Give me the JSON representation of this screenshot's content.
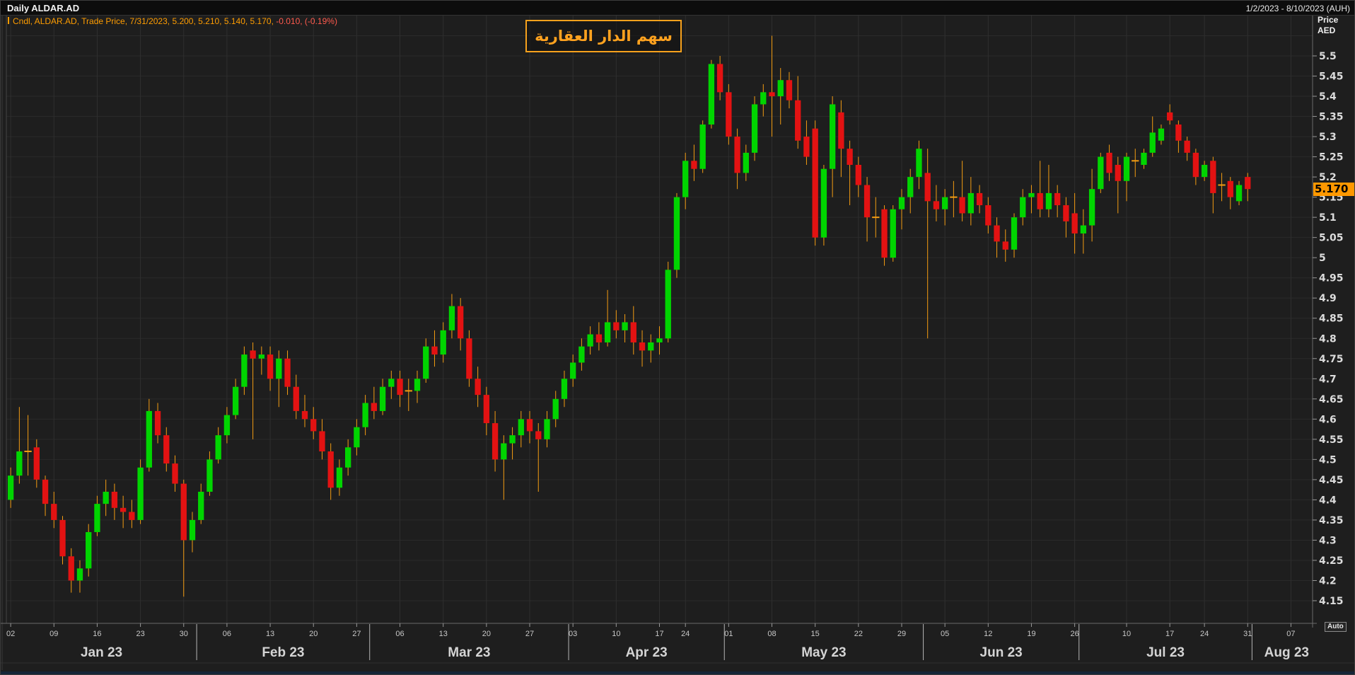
{
  "window": {
    "title": "Daily ALDAR.AD",
    "date_range": "1/2/2023 - 8/10/2023 (AUH)"
  },
  "legend": {
    "series_text": "Cndl, ALDAR.AD, Trade Price,  7/31/2023, 5.200, 5.210, 5.140, 5.170,",
    "change_text": " -0.010, (-0.19%)"
  },
  "annotation": {
    "text": "سهم الدار العقارية"
  },
  "axis": {
    "price_title": "Price",
    "currency": "AED",
    "auto_label": "Auto",
    "last_price_label": "5.170"
  },
  "colors": {
    "background": "#1e1e1e",
    "grid_h": "#2a2a2a",
    "grid_v": "#2f2f2f",
    "up": "#00d500",
    "down": "#e31212",
    "wick": "#f39c12",
    "doji": "#f39c12",
    "axis_line": "#6a6a6a",
    "axis_text": "#dcdcdc",
    "day_text": "#c8c8c8",
    "month_text": "#d4d4d4",
    "month_sep": "#b5b5b5",
    "accent_orange": "#ff9d00",
    "negative_red": "#ff5a4d",
    "price_label_bg": "#ff9800"
  },
  "chart_data": {
    "type": "candlestick",
    "symbol": "ALDAR.AD",
    "interval": "Daily",
    "title": "Daily ALDAR.AD",
    "ylabel": "Price AED",
    "y_axis": {
      "min": 4.15,
      "max": 5.5,
      "step": 0.05,
      "last_price": 5.17
    },
    "x_range": "1/2/2023 - 8/10/2023",
    "total_slots": 151,
    "x_ticks": [
      {
        "label": "02",
        "i": 0
      },
      {
        "label": "09",
        "i": 5
      },
      {
        "label": "16",
        "i": 10
      },
      {
        "label": "23",
        "i": 15
      },
      {
        "label": "30",
        "i": 20
      },
      {
        "label": "06",
        "i": 25
      },
      {
        "label": "13",
        "i": 30
      },
      {
        "label": "20",
        "i": 35
      },
      {
        "label": "27",
        "i": 40
      },
      {
        "label": "06",
        "i": 45
      },
      {
        "label": "13",
        "i": 50
      },
      {
        "label": "20",
        "i": 55
      },
      {
        "label": "27",
        "i": 60
      },
      {
        "label": "03",
        "i": 65
      },
      {
        "label": "10",
        "i": 70
      },
      {
        "label": "17",
        "i": 75
      },
      {
        "label": "24",
        "i": 78
      },
      {
        "label": "01",
        "i": 83
      },
      {
        "label": "08",
        "i": 88
      },
      {
        "label": "15",
        "i": 93
      },
      {
        "label": "22",
        "i": 98
      },
      {
        "label": "29",
        "i": 103
      },
      {
        "label": "05",
        "i": 108
      },
      {
        "label": "12",
        "i": 113
      },
      {
        "label": "19",
        "i": 118
      },
      {
        "label": "26",
        "i": 123
      },
      {
        "label": "10",
        "i": 129
      },
      {
        "label": "17",
        "i": 134
      },
      {
        "label": "24",
        "i": 138
      },
      {
        "label": "31",
        "i": 143
      },
      {
        "label": "07",
        "i": 148
      }
    ],
    "months": [
      {
        "label": "Jan 23",
        "start": 0,
        "end": 21
      },
      {
        "label": "Feb 23",
        "start": 22,
        "end": 41
      },
      {
        "label": "Mar 23",
        "start": 42,
        "end": 64
      },
      {
        "label": "Apr 23",
        "start": 65,
        "end": 82
      },
      {
        "label": "May 23",
        "start": 83,
        "end": 105
      },
      {
        "label": "Jun 23",
        "start": 106,
        "end": 123
      },
      {
        "label": "Jul 23",
        "start": 124,
        "end": 143
      },
      {
        "label": "Aug 23",
        "start": 144,
        "end": 151
      }
    ],
    "candles": [
      [
        "2023-01-02",
        4.4,
        4.48,
        4.38,
        4.46
      ],
      [
        "2023-01-03",
        4.46,
        4.63,
        4.44,
        4.52
      ],
      [
        "2023-01-04",
        4.52,
        4.61,
        4.46,
        4.52
      ],
      [
        "2023-01-05",
        4.53,
        4.55,
        4.43,
        4.45
      ],
      [
        "2023-01-06",
        4.45,
        4.46,
        4.36,
        4.39
      ],
      [
        "2023-01-09",
        4.39,
        4.42,
        4.33,
        4.35
      ],
      [
        "2023-01-10",
        4.35,
        4.36,
        4.24,
        4.26
      ],
      [
        "2023-01-11",
        4.26,
        4.28,
        4.17,
        4.2
      ],
      [
        "2023-01-12",
        4.2,
        4.25,
        4.17,
        4.23
      ],
      [
        "2023-01-13",
        4.23,
        4.34,
        4.21,
        4.32
      ],
      [
        "2023-01-16",
        4.32,
        4.41,
        4.31,
        4.39
      ],
      [
        "2023-01-17",
        4.39,
        4.45,
        4.36,
        4.42
      ],
      [
        "2023-01-18",
        4.42,
        4.44,
        4.35,
        4.38
      ],
      [
        "2023-01-19",
        4.38,
        4.41,
        4.33,
        4.37
      ],
      [
        "2023-01-20",
        4.37,
        4.4,
        4.33,
        4.35
      ],
      [
        "2023-01-23",
        4.35,
        4.5,
        4.34,
        4.48
      ],
      [
        "2023-01-24",
        4.48,
        4.65,
        4.47,
        4.62
      ],
      [
        "2023-01-25",
        4.62,
        4.64,
        4.54,
        4.56
      ],
      [
        "2023-01-26",
        4.56,
        4.58,
        4.47,
        4.49
      ],
      [
        "2023-01-27",
        4.49,
        4.51,
        4.42,
        4.44
      ],
      [
        "2023-01-30",
        4.44,
        4.45,
        4.16,
        4.3
      ],
      [
        "2023-01-31",
        4.3,
        4.37,
        4.27,
        4.35
      ],
      [
        "2023-02-01",
        4.35,
        4.44,
        4.34,
        4.42
      ],
      [
        "2023-02-02",
        4.42,
        4.52,
        4.41,
        4.5
      ],
      [
        "2023-02-03",
        4.5,
        4.58,
        4.49,
        4.56
      ],
      [
        "2023-02-06",
        4.56,
        4.63,
        4.54,
        4.61
      ],
      [
        "2023-02-07",
        4.61,
        4.7,
        4.6,
        4.68
      ],
      [
        "2023-02-08",
        4.68,
        4.78,
        4.66,
        4.76
      ],
      [
        "2023-02-09",
        4.77,
        4.79,
        4.55,
        4.75
      ],
      [
        "2023-02-10",
        4.75,
        4.78,
        4.71,
        4.76
      ],
      [
        "2023-02-13",
        4.76,
        4.78,
        4.67,
        4.7
      ],
      [
        "2023-02-14",
        4.7,
        4.77,
        4.63,
        4.75
      ],
      [
        "2023-02-15",
        4.75,
        4.77,
        4.66,
        4.68
      ],
      [
        "2023-02-16",
        4.68,
        4.71,
        4.6,
        4.62
      ],
      [
        "2023-02-17",
        4.62,
        4.66,
        4.58,
        4.6
      ],
      [
        "2023-02-20",
        4.6,
        4.63,
        4.55,
        4.57
      ],
      [
        "2023-02-21",
        4.57,
        4.6,
        4.5,
        4.52
      ],
      [
        "2023-02-22",
        4.52,
        4.54,
        4.4,
        4.43
      ],
      [
        "2023-02-23",
        4.43,
        4.5,
        4.41,
        4.48
      ],
      [
        "2023-02-24",
        4.48,
        4.55,
        4.46,
        4.53
      ],
      [
        "2023-02-27",
        4.53,
        4.6,
        4.51,
        4.58
      ],
      [
        "2023-02-28",
        4.58,
        4.66,
        4.56,
        4.64
      ],
      [
        "2023-03-01",
        4.64,
        4.68,
        4.6,
        4.62
      ],
      [
        "2023-03-02",
        4.62,
        4.7,
        4.61,
        4.68
      ],
      [
        "2023-03-03",
        4.68,
        4.72,
        4.65,
        4.7
      ],
      [
        "2023-03-06",
        4.7,
        4.72,
        4.63,
        4.66
      ],
      [
        "2023-03-07",
        4.67,
        4.7,
        4.62,
        4.67
      ],
      [
        "2023-03-08",
        4.67,
        4.72,
        4.64,
        4.7
      ],
      [
        "2023-03-09",
        4.7,
        4.8,
        4.69,
        4.78
      ],
      [
        "2023-03-10",
        4.78,
        4.82,
        4.73,
        4.76
      ],
      [
        "2023-03-13",
        4.76,
        4.84,
        4.74,
        4.82
      ],
      [
        "2023-03-14",
        4.82,
        4.91,
        4.8,
        4.88
      ],
      [
        "2023-03-15",
        4.88,
        4.9,
        4.77,
        4.8
      ],
      [
        "2023-03-16",
        4.8,
        4.82,
        4.68,
        4.7
      ],
      [
        "2023-03-17",
        4.7,
        4.73,
        4.63,
        4.66
      ],
      [
        "2023-03-20",
        4.66,
        4.68,
        4.56,
        4.59
      ],
      [
        "2023-03-21",
        4.59,
        4.62,
        4.47,
        4.5
      ],
      [
        "2023-03-22",
        4.5,
        4.56,
        4.4,
        4.54
      ],
      [
        "2023-03-23",
        4.54,
        4.58,
        4.5,
        4.56
      ],
      [
        "2023-03-24",
        4.56,
        4.62,
        4.53,
        4.6
      ],
      [
        "2023-03-27",
        4.6,
        4.62,
        4.54,
        4.57
      ],
      [
        "2023-03-28",
        4.57,
        4.59,
        4.42,
        4.55
      ],
      [
        "2023-03-29",
        4.55,
        4.62,
        4.53,
        4.6
      ],
      [
        "2023-03-30",
        4.6,
        4.67,
        4.58,
        4.65
      ],
      [
        "2023-03-31",
        4.65,
        4.72,
        4.63,
        4.7
      ],
      [
        "2023-04-03",
        4.7,
        4.76,
        4.68,
        4.74
      ],
      [
        "2023-04-04",
        4.74,
        4.8,
        4.72,
        4.78
      ],
      [
        "2023-04-05",
        4.78,
        4.83,
        4.76,
        4.81
      ],
      [
        "2023-04-06",
        4.81,
        4.84,
        4.77,
        4.79
      ],
      [
        "2023-04-07",
        4.79,
        4.92,
        4.78,
        4.84
      ],
      [
        "2023-04-10",
        4.84,
        4.87,
        4.8,
        4.82
      ],
      [
        "2023-04-11",
        4.82,
        4.86,
        4.79,
        4.84
      ],
      [
        "2023-04-12",
        4.84,
        4.88,
        4.76,
        4.79
      ],
      [
        "2023-04-13",
        4.79,
        4.82,
        4.73,
        4.77
      ],
      [
        "2023-04-14",
        4.77,
        4.81,
        4.74,
        4.79
      ],
      [
        "2023-04-17",
        4.79,
        4.83,
        4.76,
        4.8
      ],
      [
        "2023-04-18",
        4.8,
        4.99,
        4.79,
        4.97
      ],
      [
        "2023-04-19",
        4.97,
        5.16,
        4.95,
        5.15
      ],
      [
        "2023-04-24",
        5.15,
        5.26,
        5.12,
        5.24
      ],
      [
        "2023-04-25",
        5.24,
        5.28,
        5.19,
        5.22
      ],
      [
        "2023-04-26",
        5.22,
        5.34,
        5.21,
        5.33
      ],
      [
        "2023-04-27",
        5.33,
        5.49,
        5.32,
        5.48
      ],
      [
        "2023-04-28",
        5.48,
        5.5,
        5.39,
        5.41
      ],
      [
        "2023-05-01",
        5.41,
        5.43,
        5.28,
        5.3
      ],
      [
        "2023-05-02",
        5.3,
        5.32,
        5.17,
        5.21
      ],
      [
        "2023-05-03",
        5.21,
        5.28,
        5.19,
        5.26
      ],
      [
        "2023-05-04",
        5.26,
        5.4,
        5.24,
        5.38
      ],
      [
        "2023-05-05",
        5.38,
        5.43,
        5.35,
        5.41
      ],
      [
        "2023-05-08",
        5.41,
        5.55,
        5.3,
        5.4
      ],
      [
        "2023-05-09",
        5.4,
        5.47,
        5.33,
        5.44
      ],
      [
        "2023-05-10",
        5.44,
        5.46,
        5.37,
        5.39
      ],
      [
        "2023-05-11",
        5.39,
        5.45,
        5.27,
        5.29
      ],
      [
        "2023-05-12",
        5.3,
        5.34,
        5.23,
        5.25
      ],
      [
        "2023-05-15",
        5.32,
        5.34,
        5.03,
        5.05
      ],
      [
        "2023-05-16",
        5.05,
        5.23,
        5.03,
        5.22
      ],
      [
        "2023-05-17",
        5.22,
        5.4,
        5.15,
        5.38
      ],
      [
        "2023-05-18",
        5.36,
        5.39,
        5.2,
        5.27
      ],
      [
        "2023-05-19",
        5.27,
        5.29,
        5.13,
        5.23
      ],
      [
        "2023-05-22",
        5.23,
        5.25,
        5.15,
        5.18
      ],
      [
        "2023-05-23",
        5.18,
        5.2,
        5.04,
        5.1
      ],
      [
        "2023-05-24",
        5.1,
        5.15,
        5.05,
        5.1
      ],
      [
        "2023-05-25",
        5.12,
        5.13,
        4.98,
        5.0
      ],
      [
        "2023-05-26",
        5.0,
        5.13,
        4.99,
        5.12
      ],
      [
        "2023-05-29",
        5.12,
        5.17,
        5.07,
        5.15
      ],
      [
        "2023-05-30",
        5.15,
        5.22,
        5.11,
        5.2
      ],
      [
        "2023-05-31",
        5.2,
        5.29,
        5.17,
        5.27
      ],
      [
        "2023-06-01",
        5.21,
        5.27,
        4.8,
        5.14
      ],
      [
        "2023-06-02",
        5.14,
        5.18,
        5.09,
        5.12
      ],
      [
        "2023-06-05",
        5.12,
        5.17,
        5.08,
        5.15
      ],
      [
        "2023-06-06",
        5.15,
        5.19,
        5.1,
        5.15
      ],
      [
        "2023-06-07",
        5.15,
        5.24,
        5.09,
        5.11
      ],
      [
        "2023-06-08",
        5.11,
        5.2,
        5.08,
        5.16
      ],
      [
        "2023-06-09",
        5.16,
        5.18,
        5.11,
        5.13
      ],
      [
        "2023-06-12",
        5.13,
        5.15,
        5.06,
        5.08
      ],
      [
        "2023-06-13",
        5.08,
        5.1,
        5.0,
        5.04
      ],
      [
        "2023-06-14",
        5.04,
        5.07,
        4.99,
        5.02
      ],
      [
        "2023-06-15",
        5.02,
        5.11,
        5.0,
        5.1
      ],
      [
        "2023-06-16",
        5.1,
        5.17,
        5.08,
        5.15
      ],
      [
        "2023-06-19",
        5.15,
        5.18,
        5.11,
        5.16
      ],
      [
        "2023-06-20",
        5.16,
        5.24,
        5.1,
        5.12
      ],
      [
        "2023-06-21",
        5.12,
        5.23,
        5.1,
        5.16
      ],
      [
        "2023-06-22",
        5.16,
        5.18,
        5.1,
        5.13
      ],
      [
        "2023-06-23",
        5.13,
        5.15,
        5.05,
        5.09
      ],
      [
        "2023-06-26",
        5.11,
        5.16,
        5.01,
        5.06
      ],
      [
        "2023-07-03",
        5.06,
        5.12,
        5.01,
        5.08
      ],
      [
        "2023-07-04",
        5.08,
        5.22,
        5.04,
        5.17
      ],
      [
        "2023-07-05",
        5.17,
        5.26,
        5.16,
        5.25
      ],
      [
        "2023-07-06",
        5.26,
        5.28,
        5.19,
        5.21
      ],
      [
        "2023-07-07",
        5.23,
        5.25,
        5.11,
        5.19
      ],
      [
        "2023-07-10",
        5.19,
        5.26,
        5.14,
        5.25
      ],
      [
        "2023-07-11",
        5.24,
        5.27,
        5.2,
        5.24
      ],
      [
        "2023-07-12",
        5.23,
        5.27,
        5.22,
        5.26
      ],
      [
        "2023-07-13",
        5.26,
        5.35,
        5.25,
        5.31
      ],
      [
        "2023-07-14",
        5.29,
        5.33,
        5.28,
        5.32
      ],
      [
        "2023-07-17",
        5.36,
        5.38,
        5.33,
        5.34
      ],
      [
        "2023-07-18",
        5.33,
        5.34,
        5.26,
        5.29
      ],
      [
        "2023-07-19",
        5.29,
        5.3,
        5.24,
        5.26
      ],
      [
        "2023-07-20",
        5.26,
        5.27,
        5.18,
        5.2
      ],
      [
        "2023-07-24",
        5.2,
        5.24,
        5.19,
        5.23
      ],
      [
        "2023-07-25",
        5.24,
        5.25,
        5.11,
        5.16
      ],
      [
        "2023-07-26",
        5.18,
        5.21,
        5.14,
        5.18
      ],
      [
        "2023-07-27",
        5.19,
        5.2,
        5.12,
        5.15
      ],
      [
        "2023-07-28",
        5.14,
        5.19,
        5.13,
        5.18
      ],
      [
        "2023-07-31",
        5.2,
        5.21,
        5.14,
        5.17
      ]
    ]
  }
}
